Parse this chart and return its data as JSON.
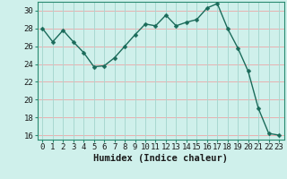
{
  "x": [
    0,
    1,
    2,
    3,
    4,
    5,
    6,
    7,
    8,
    9,
    10,
    11,
    12,
    13,
    14,
    15,
    16,
    17,
    18,
    19,
    20,
    21,
    22,
    23
  ],
  "y": [
    28,
    26.5,
    27.8,
    26.5,
    25.3,
    23.7,
    23.8,
    24.7,
    26.0,
    27.3,
    28.5,
    28.3,
    29.5,
    28.3,
    28.7,
    29.0,
    30.3,
    30.8,
    28.0,
    25.8,
    23.2,
    19.0,
    16.2,
    16.0
  ],
  "line_color": "#1a6b5a",
  "marker": "D",
  "marker_size": 2.5,
  "bg_color": "#cff0eb",
  "grid_color_h": "#e8b0b0",
  "grid_color_v": "#a8d8d0",
  "xlabel": "Humidex (Indice chaleur)",
  "ylim": [
    15.5,
    31.0
  ],
  "xlim": [
    -0.5,
    23.5
  ],
  "yticks": [
    16,
    18,
    20,
    22,
    24,
    26,
    28,
    30
  ],
  "xticks": [
    0,
    1,
    2,
    3,
    4,
    5,
    6,
    7,
    8,
    9,
    10,
    11,
    12,
    13,
    14,
    15,
    16,
    17,
    18,
    19,
    20,
    21,
    22,
    23
  ],
  "xlabel_fontsize": 7.5,
  "tick_fontsize": 6.5,
  "spine_color": "#2a8a70"
}
